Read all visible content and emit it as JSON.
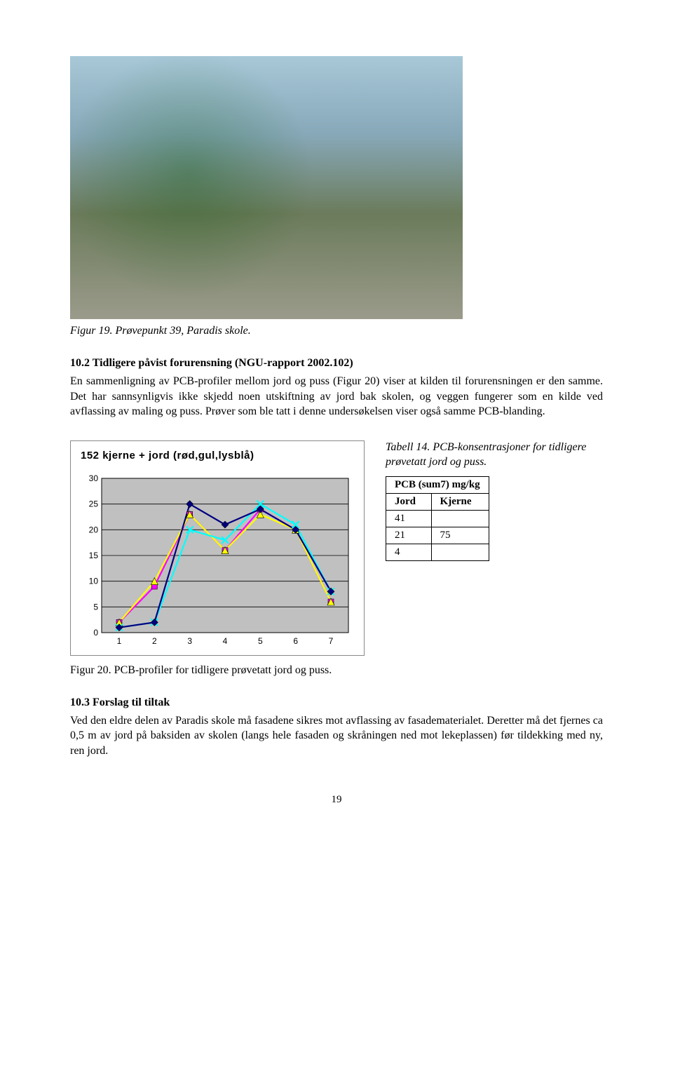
{
  "photo_caption": "Figur 19. Prøvepunkt 39, Paradis skole.",
  "section_10_2": {
    "heading": "10.2  Tidligere påvist forurensning (NGU-rapport 2002.102)",
    "paragraph": "En sammenligning av PCB-profiler mellom jord og puss (Figur 20) viser at kilden til forurensningen er den samme. Det har sannsynligvis ikke skjedd noen utskiftning av jord bak skolen, og veggen fungerer som en kilde ved avflassing av maling og puss. Prøver som ble tatt i denne undersøkelsen viser også samme PCB-blanding."
  },
  "chart": {
    "type": "line",
    "title": "152 kjerne + jord (rød,gul,lysblå)",
    "x_categories": [
      1,
      2,
      3,
      4,
      5,
      6,
      7
    ],
    "ylim": [
      0,
      30
    ],
    "ytick_step": 5,
    "x_pad": 25,
    "plot_background": "#c0c0c0",
    "gridline_color": "#000000",
    "series": [
      {
        "name": "red",
        "color": "#ff00ff",
        "marker": "square",
        "values": [
          2,
          9,
          23,
          16,
          24,
          20,
          6
        ]
      },
      {
        "name": "yellow",
        "color": "#ffff00",
        "marker": "triangle",
        "values": [
          2,
          10,
          23,
          16,
          23,
          20,
          6
        ]
      },
      {
        "name": "ltblue",
        "color": "#00ffff",
        "marker": "x",
        "values": [
          1,
          2,
          20,
          18,
          25,
          21,
          8
        ]
      },
      {
        "name": "navy",
        "color": "#000080",
        "marker": "diamond",
        "values": [
          1,
          2,
          25,
          21,
          24,
          20,
          8
        ]
      }
    ],
    "title_fontsize": 15,
    "tick_fontsize": 12,
    "tick_font": "Arial"
  },
  "table14": {
    "caption_prefix": "Tabell 14.",
    "caption_rest": " PCB-konsentrasjoner for tidligere prøvetatt jord og puss.",
    "header_span": "PCB (sum7) mg/kg",
    "columns": [
      "Jord",
      "Kjerne"
    ],
    "rows": [
      [
        "41",
        ""
      ],
      [
        "21",
        "75"
      ],
      [
        "4",
        ""
      ]
    ]
  },
  "figure20_caption": "Figur 20. PCB-profiler for tidligere prøvetatt jord og puss.",
  "section_10_3": {
    "heading": "10.3  Forslag til tiltak",
    "paragraph": "Ved den eldre delen av Paradis skole må fasadene  sikres mot avflassing  av fasadematerialet. Deretter må det fjernes ca 0,5 m av jord på baksiden av skolen (langs hele fasaden og skråningen ned mot lekeplassen) før tildekking med ny, ren jord."
  },
  "page_number": "19"
}
